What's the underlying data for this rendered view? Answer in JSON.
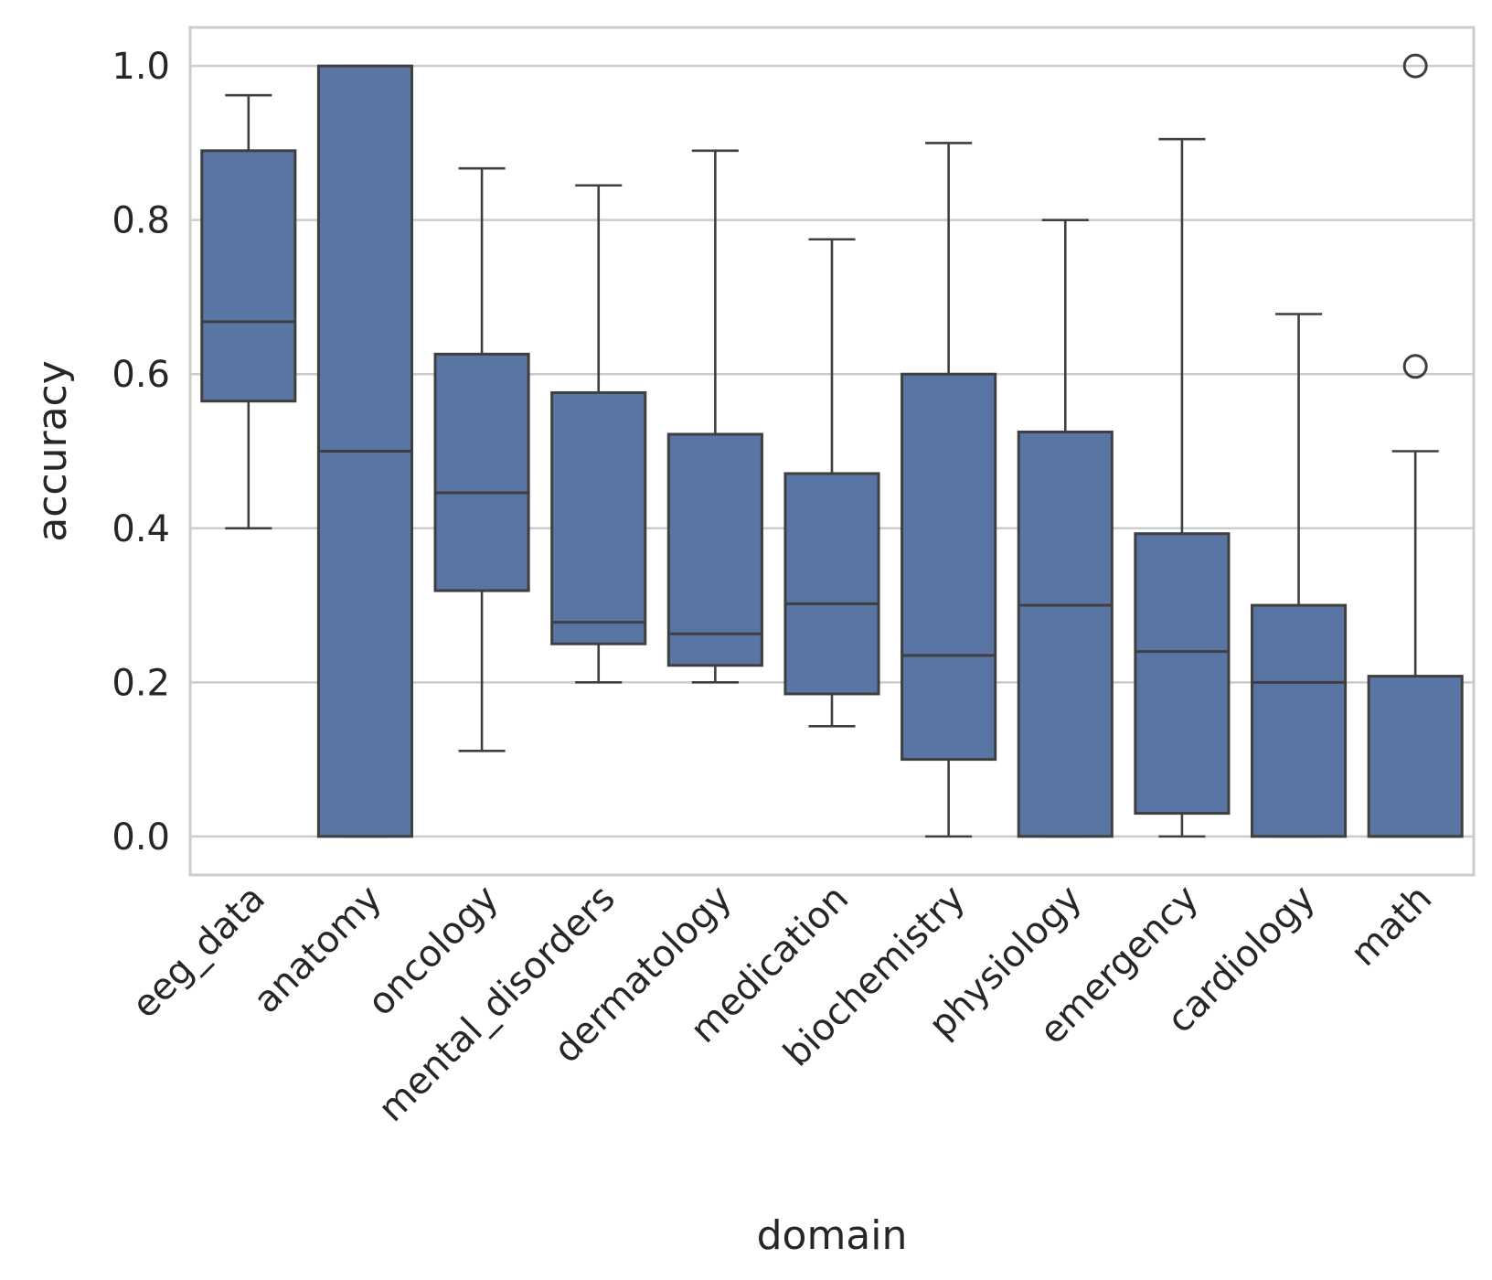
{
  "chart_data": {
    "type": "box",
    "xlabel": "domain",
    "ylabel": "accuracy",
    "ylim": [
      -0.05,
      1.05
    ],
    "yticks": [
      0.0,
      0.2,
      0.4,
      0.6,
      0.8,
      1.0
    ],
    "ytick_labels": [
      "0.0",
      "0.2",
      "0.4",
      "0.6",
      "0.8",
      "1.0"
    ],
    "grid": true,
    "colors": {
      "box_fill": "#5975a4",
      "box_edge": "#3f3f3f",
      "grid": "#cccccc",
      "frame": "#cccccc"
    },
    "categories": [
      "eeg_data",
      "anatomy",
      "oncology",
      "mental_disorders",
      "dermatology",
      "medication",
      "biochemistry",
      "physiology",
      "emergency",
      "cardiology",
      "math"
    ],
    "boxes": [
      {
        "category": "eeg_data",
        "whisker_low": 0.4,
        "q1": 0.565,
        "median": 0.668,
        "q3": 0.89,
        "whisker_high": 0.962,
        "outliers": []
      },
      {
        "category": "anatomy",
        "whisker_low": 0.0,
        "q1": 0.0,
        "median": 0.5,
        "q3": 1.0,
        "whisker_high": 1.0,
        "outliers": []
      },
      {
        "category": "oncology",
        "whisker_low": 0.111,
        "q1": 0.319,
        "median": 0.446,
        "q3": 0.626,
        "whisker_high": 0.867,
        "outliers": []
      },
      {
        "category": "mental_disorders",
        "whisker_low": 0.2,
        "q1": 0.25,
        "median": 0.278,
        "q3": 0.576,
        "whisker_high": 0.845,
        "outliers": []
      },
      {
        "category": "dermatology",
        "whisker_low": 0.2,
        "q1": 0.222,
        "median": 0.263,
        "q3": 0.522,
        "whisker_high": 0.89,
        "outliers": []
      },
      {
        "category": "medication",
        "whisker_low": 0.143,
        "q1": 0.185,
        "median": 0.302,
        "q3": 0.471,
        "whisker_high": 0.775,
        "outliers": []
      },
      {
        "category": "biochemistry",
        "whisker_low": 0.0,
        "q1": 0.1,
        "median": 0.235,
        "q3": 0.6,
        "whisker_high": 0.9,
        "outliers": []
      },
      {
        "category": "physiology",
        "whisker_low": 0.0,
        "q1": 0.0,
        "median": 0.3,
        "q3": 0.525,
        "whisker_high": 0.8,
        "outliers": []
      },
      {
        "category": "emergency",
        "whisker_low": 0.0,
        "q1": 0.03,
        "median": 0.24,
        "q3": 0.393,
        "whisker_high": 0.905,
        "outliers": []
      },
      {
        "category": "cardiology",
        "whisker_low": 0.0,
        "q1": 0.0,
        "median": 0.2,
        "q3": 0.3,
        "whisker_high": 0.678,
        "outliers": []
      },
      {
        "category": "math",
        "whisker_low": 0.0,
        "q1": 0.0,
        "median": 0.0,
        "q3": 0.208,
        "whisker_high": 0.5,
        "outliers": [
          0.61,
          1.0
        ]
      }
    ]
  }
}
